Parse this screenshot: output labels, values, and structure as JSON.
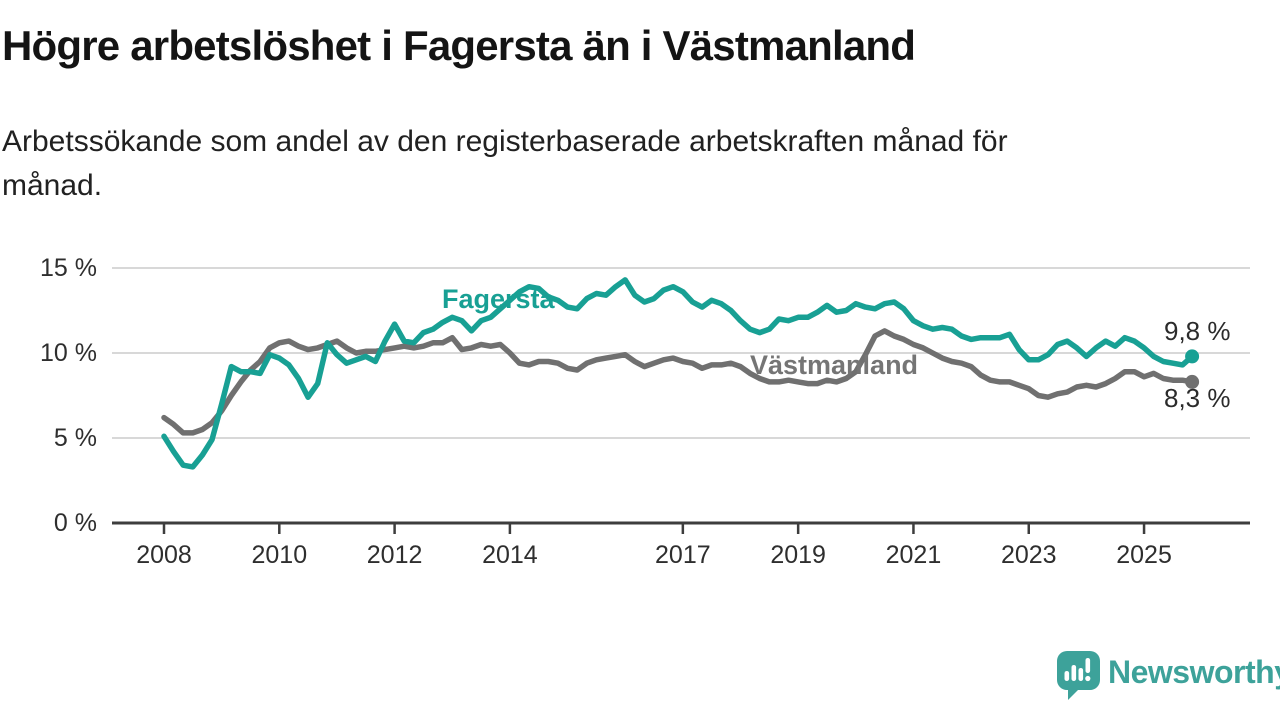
{
  "header": {
    "title": "Högre arbetslöshet i Fagersta än i Västmanland",
    "subtitle_line1": "Arbetssökande som andel av den registerbaserade arbetskraften månad för",
    "subtitle_line2": "månad."
  },
  "chart_data": {
    "type": "line",
    "title": "Högre arbetslöshet i Fagersta än i Västmanland",
    "subtitle": "Arbetssökande som andel av den registerbaserade arbetskraften månad för månad.",
    "x_unit": "year",
    "x_start": 2008.0,
    "x_step": 0.166667,
    "x_end": 2025.83,
    "xlim": [
      2007.1,
      2026.85
    ],
    "ylim": [
      0,
      15.8
    ],
    "grid": "horizontal",
    "gridline_color": "#d8d8d8",
    "axis_color": "#3d3d3d",
    "yticks": [
      {
        "value": 0,
        "label": "0 %"
      },
      {
        "value": 5,
        "label": "5 %"
      },
      {
        "value": 10,
        "label": "10 %"
      },
      {
        "value": 15,
        "label": "15 %"
      }
    ],
    "xticks": [
      {
        "value": 2008,
        "label": "2008"
      },
      {
        "value": 2010,
        "label": "2010"
      },
      {
        "value": 2012,
        "label": "2012"
      },
      {
        "value": 2014,
        "label": "2014"
      },
      {
        "value": 2017,
        "label": "2017"
      },
      {
        "value": 2019,
        "label": "2019"
      },
      {
        "value": 2021,
        "label": "2021"
      },
      {
        "value": 2023,
        "label": "2023"
      },
      {
        "value": 2025,
        "label": "2025"
      }
    ],
    "series": [
      {
        "name": "Västmanland",
        "color": "#707070",
        "label_color": "#757575",
        "end_value": 8.3,
        "end_label": "8,3 %",
        "values": [
          6.2,
          5.8,
          5.3,
          5.3,
          5.5,
          5.9,
          6.6,
          7.5,
          8.3,
          9.0,
          9.5,
          10.3,
          10.6,
          10.7,
          10.4,
          10.2,
          10.3,
          10.5,
          10.7,
          10.3,
          10.0,
          10.1,
          10.1,
          10.2,
          10.3,
          10.4,
          10.3,
          10.4,
          10.6,
          10.6,
          10.9,
          10.2,
          10.3,
          10.5,
          10.4,
          10.5,
          10.0,
          9.4,
          9.3,
          9.5,
          9.5,
          9.4,
          9.1,
          9.0,
          9.4,
          9.6,
          9.7,
          9.8,
          9.9,
          9.5,
          9.2,
          9.4,
          9.6,
          9.7,
          9.5,
          9.4,
          9.1,
          9.3,
          9.3,
          9.4,
          9.2,
          8.8,
          8.5,
          8.3,
          8.3,
          8.4,
          8.3,
          8.2,
          8.2,
          8.4,
          8.3,
          8.5,
          8.9,
          9.9,
          11.0,
          11.3,
          11.0,
          10.8,
          10.5,
          10.3,
          10.0,
          9.7,
          9.5,
          9.4,
          9.2,
          8.7,
          8.4,
          8.3,
          8.3,
          8.1,
          7.9,
          7.5,
          7.4,
          7.6,
          7.7,
          8.0,
          8.1,
          8.0,
          8.2,
          8.5,
          8.9,
          8.9,
          8.6,
          8.8,
          8.5,
          8.4,
          8.4,
          8.3
        ]
      },
      {
        "name": "Fagersta",
        "color": "#18a094",
        "label_color": "#18a094",
        "end_value": 9.8,
        "end_label": "9,8 %",
        "values": [
          5.1,
          4.2,
          3.4,
          3.3,
          4.0,
          4.9,
          7.0,
          9.2,
          8.9,
          8.9,
          8.8,
          9.9,
          9.7,
          9.3,
          8.5,
          7.4,
          8.2,
          10.6,
          9.9,
          9.4,
          9.6,
          9.8,
          9.5,
          10.7,
          11.7,
          10.7,
          10.6,
          11.2,
          11.4,
          11.8,
          12.1,
          11.9,
          11.3,
          11.9,
          12.1,
          12.6,
          13.1,
          13.6,
          13.9,
          13.8,
          13.3,
          13.1,
          12.7,
          12.6,
          13.2,
          13.5,
          13.4,
          13.9,
          14.3,
          13.4,
          13.0,
          13.2,
          13.7,
          13.9,
          13.6,
          13.0,
          12.7,
          13.1,
          12.9,
          12.5,
          11.9,
          11.4,
          11.2,
          11.4,
          12.0,
          11.9,
          12.1,
          12.1,
          12.4,
          12.8,
          12.4,
          12.5,
          12.9,
          12.7,
          12.6,
          12.9,
          13.0,
          12.6,
          11.9,
          11.6,
          11.4,
          11.5,
          11.4,
          11.0,
          10.8,
          10.9,
          10.9,
          10.9,
          11.1,
          10.2,
          9.6,
          9.6,
          9.9,
          10.5,
          10.7,
          10.3,
          9.8,
          10.3,
          10.7,
          10.4,
          10.9,
          10.7,
          10.3,
          9.8,
          9.5,
          9.4,
          9.3,
          9.8
        ]
      }
    ]
  },
  "branding": {
    "wordmark": "Newsworthy",
    "logo_icon": "newsworthy-speech-bubble-bar-chart-icon",
    "logo_color": "#3da29a"
  }
}
